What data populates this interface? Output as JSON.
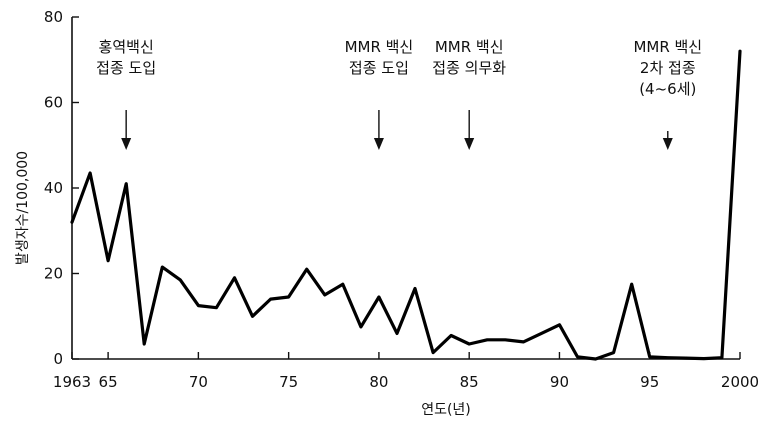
{
  "chart_data": {
    "type": "line",
    "xlabel": "연도(년)",
    "ylabel": "발생자수/100,000",
    "xlim": [
      1963,
      2000
    ],
    "ylim": [
      0,
      80
    ],
    "x_ticks": [
      1963,
      1965,
      1970,
      1975,
      1980,
      1985,
      1990,
      1995,
      2000
    ],
    "x_tick_labels": [
      "1963",
      "65",
      "70",
      "75",
      "80",
      "85",
      "90",
      "95",
      "2000"
    ],
    "y_ticks": [
      0,
      20,
      40,
      60,
      80
    ],
    "y_tick_labels": [
      "0",
      "20",
      "40",
      "60",
      "80"
    ],
    "grid": false,
    "series": [
      {
        "x": [
          1963,
          1964,
          1965,
          1966,
          1967,
          1968,
          1969,
          1970,
          1971,
          1972,
          1973,
          1974,
          1975,
          1976,
          1977,
          1978,
          1979,
          1980,
          1981,
          1982,
          1983,
          1984,
          1985,
          1986,
          1987,
          1988,
          1989,
          1990,
          1991,
          1992,
          1993,
          1994,
          1995,
          1996,
          1997,
          1998,
          1999,
          2000
        ],
        "y": [
          32,
          43.5,
          23,
          41,
          3.5,
          21.5,
          18.5,
          12.5,
          12,
          19,
          10,
          14,
          14.5,
          21,
          15,
          17.5,
          7.5,
          14.5,
          6,
          16.5,
          1.5,
          5.5,
          3.5,
          4.5,
          4.5,
          4,
          6,
          8,
          0.5,
          0,
          1.5,
          17.5,
          0.5,
          0.3,
          0.2,
          0.1,
          0.3,
          72
        ]
      }
    ],
    "annotations": [
      {
        "x": 1966,
        "lines": [
          "홍역백신",
          "접종 도입"
        ]
      },
      {
        "x": 1980,
        "lines": [
          "MMR 백신",
          "접종 도입"
        ]
      },
      {
        "x": 1985,
        "lines": [
          "MMR 백신",
          "접종 의무화"
        ]
      },
      {
        "x": 1996,
        "lines": [
          "MMR 백신",
          "2차 접종",
          "(4~6세)"
        ]
      }
    ],
    "colors": {
      "line": "#000000",
      "axis": "#111111",
      "background": "#ffffff"
    }
  }
}
